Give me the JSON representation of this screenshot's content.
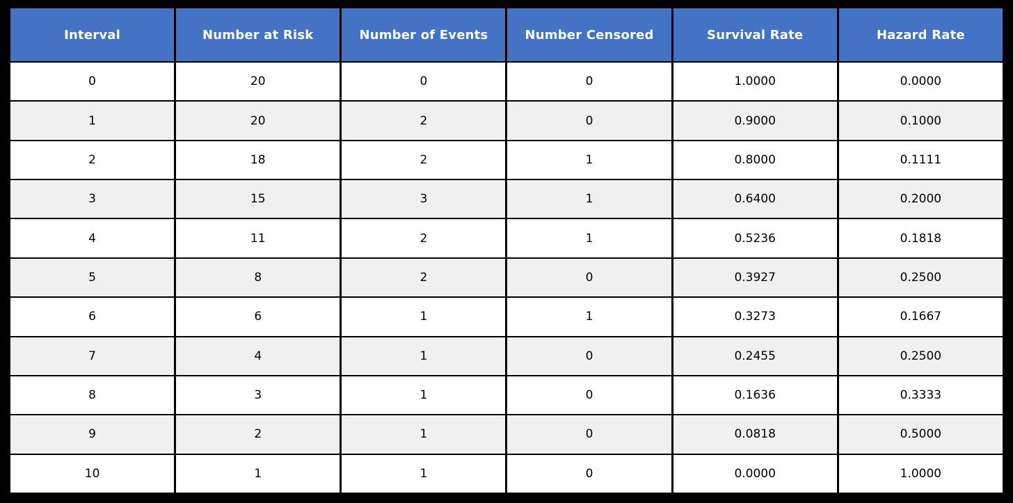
{
  "table": {
    "columns": [
      "Interval",
      "Number at Risk",
      "Number of Events",
      "Number Censored",
      "Survival Rate",
      "Hazard Rate"
    ],
    "rows": [
      [
        "0",
        "20",
        "0",
        "0",
        "1.0000",
        "0.0000"
      ],
      [
        "1",
        "20",
        "2",
        "0",
        "0.9000",
        "0.1000"
      ],
      [
        "2",
        "18",
        "2",
        "1",
        "0.8000",
        "0.1111"
      ],
      [
        "3",
        "15",
        "3",
        "1",
        "0.6400",
        "0.2000"
      ],
      [
        "4",
        "11",
        "2",
        "1",
        "0.5236",
        "0.1818"
      ],
      [
        "5",
        "8",
        "2",
        "0",
        "0.3927",
        "0.2500"
      ],
      [
        "6",
        "6",
        "1",
        "1",
        "0.3273",
        "0.1667"
      ],
      [
        "7",
        "4",
        "1",
        "0",
        "0.2455",
        "0.2500"
      ],
      [
        "8",
        "3",
        "1",
        "0",
        "0.1636",
        "0.3333"
      ],
      [
        "9",
        "2",
        "1",
        "0",
        "0.0818",
        "0.5000"
      ],
      [
        "10",
        "1",
        "1",
        "0",
        "0.0000",
        "1.0000"
      ]
    ]
  },
  "colors": {
    "page_bg": "#000000",
    "header_bg": "#4472C4",
    "header_text": "#FFFFFF",
    "row_bg": "#FFFFFF",
    "row_alt_bg": "#F0F0F0",
    "border": "#000000",
    "cell_text": "#000000"
  },
  "chart_data": {
    "type": "table",
    "title": "",
    "columns": [
      "Interval",
      "Number at Risk",
      "Number of Events",
      "Number Censored",
      "Survival Rate",
      "Hazard Rate"
    ],
    "rows": [
      [
        0,
        20,
        0,
        0,
        1.0,
        0.0
      ],
      [
        1,
        20,
        2,
        0,
        0.9,
        0.1
      ],
      [
        2,
        18,
        2,
        1,
        0.8,
        0.1111
      ],
      [
        3,
        15,
        3,
        1,
        0.64,
        0.2
      ],
      [
        4,
        11,
        2,
        1,
        0.5236,
        0.1818
      ],
      [
        5,
        8,
        2,
        0,
        0.3927,
        0.25
      ],
      [
        6,
        6,
        1,
        1,
        0.3273,
        0.1667
      ],
      [
        7,
        4,
        1,
        0,
        0.2455,
        0.25
      ],
      [
        8,
        3,
        1,
        0,
        0.1636,
        0.3333
      ],
      [
        9,
        2,
        1,
        0,
        0.0818,
        0.5
      ],
      [
        10,
        1,
        1,
        0,
        0.0,
        1.0
      ]
    ]
  }
}
